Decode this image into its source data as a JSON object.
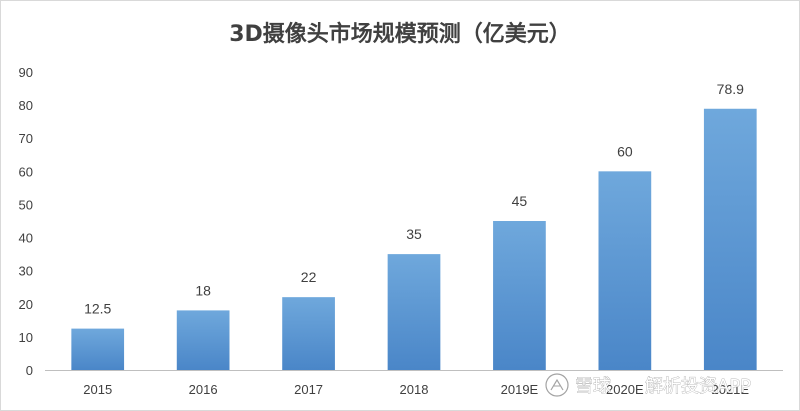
{
  "chart_data": {
    "type": "bar",
    "title": "3D摄像头市场规模预测（亿美元）",
    "categories": [
      "2015",
      "2016",
      "2017",
      "2018",
      "2019E",
      "2020E",
      "2021E"
    ],
    "values": [
      12.5,
      18,
      22,
      35,
      45,
      60,
      78.9
    ],
    "data_labels": [
      "12.5",
      "18",
      "22",
      "35",
      "45",
      "60",
      "78.9"
    ],
    "xlabel": "",
    "ylabel": "",
    "ylim": [
      0,
      90
    ],
    "yticks": [
      0,
      10,
      20,
      30,
      40,
      50,
      60,
      70,
      80,
      90
    ],
    "grid": false,
    "legend": "none",
    "bar_color_top": "#6fa8dc",
    "bar_color_bottom": "#4a86c8"
  },
  "watermark": {
    "brand": "雪球",
    "text": "解析投资APP"
  }
}
